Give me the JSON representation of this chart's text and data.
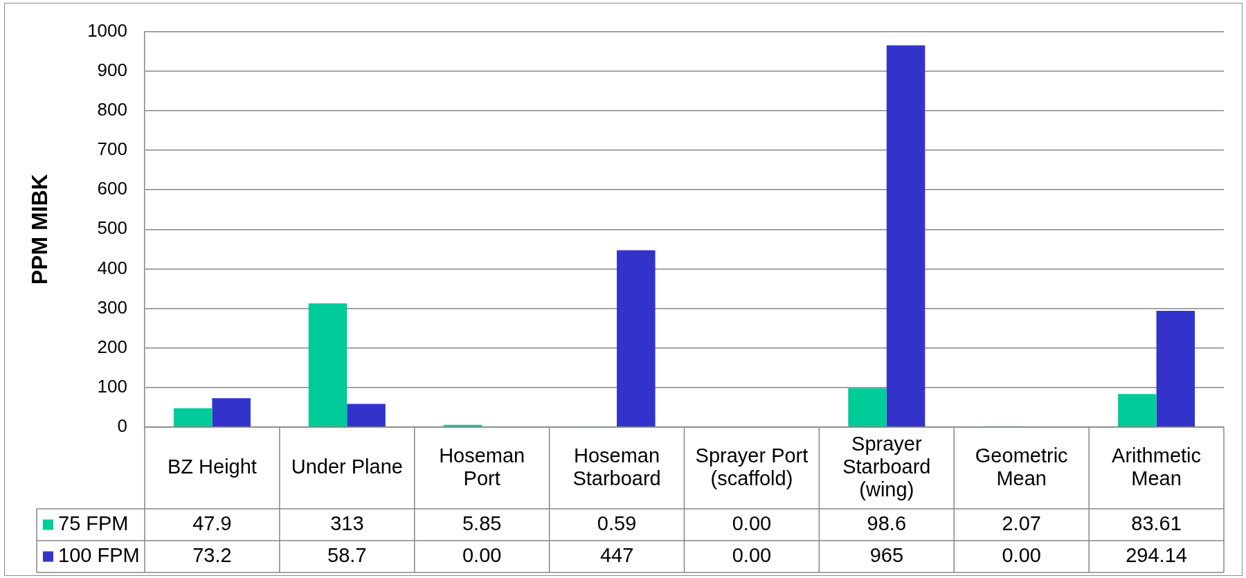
{
  "chart_data": {
    "type": "bar",
    "ylabel": "PPM MIBK",
    "categories": [
      "BZ Height",
      "Under Plane",
      "Hoseman Port",
      "Hoseman Starboard",
      "Sprayer Port (scaffold)",
      "Sprayer Starboard (wing)",
      "Geometric Mean",
      "Arithmetic Mean"
    ],
    "series": [
      {
        "name": "75 FPM",
        "color": "#00cc99",
        "values": [
          47.9,
          313,
          5.85,
          0.59,
          0,
          98.6,
          2.07,
          83.61
        ],
        "value_labels": [
          "47.9",
          "313",
          "5.85",
          "0.59",
          "0.00",
          "98.6",
          "2.07",
          "83.61"
        ]
      },
      {
        "name": "100 FPM",
        "color": "#3333cc",
        "values": [
          73.2,
          58.7,
          0,
          447,
          0,
          965,
          0,
          294.14
        ],
        "value_labels": [
          "73.2",
          "58.7",
          "0.00",
          "447",
          "0.00",
          "965",
          "0.00",
          "294.14"
        ]
      }
    ],
    "ylim": [
      0,
      1000
    ],
    "yticks": [
      0,
      100,
      200,
      300,
      400,
      500,
      600,
      700,
      800,
      900,
      1000
    ],
    "grid": "y",
    "legend": "bottom left"
  }
}
